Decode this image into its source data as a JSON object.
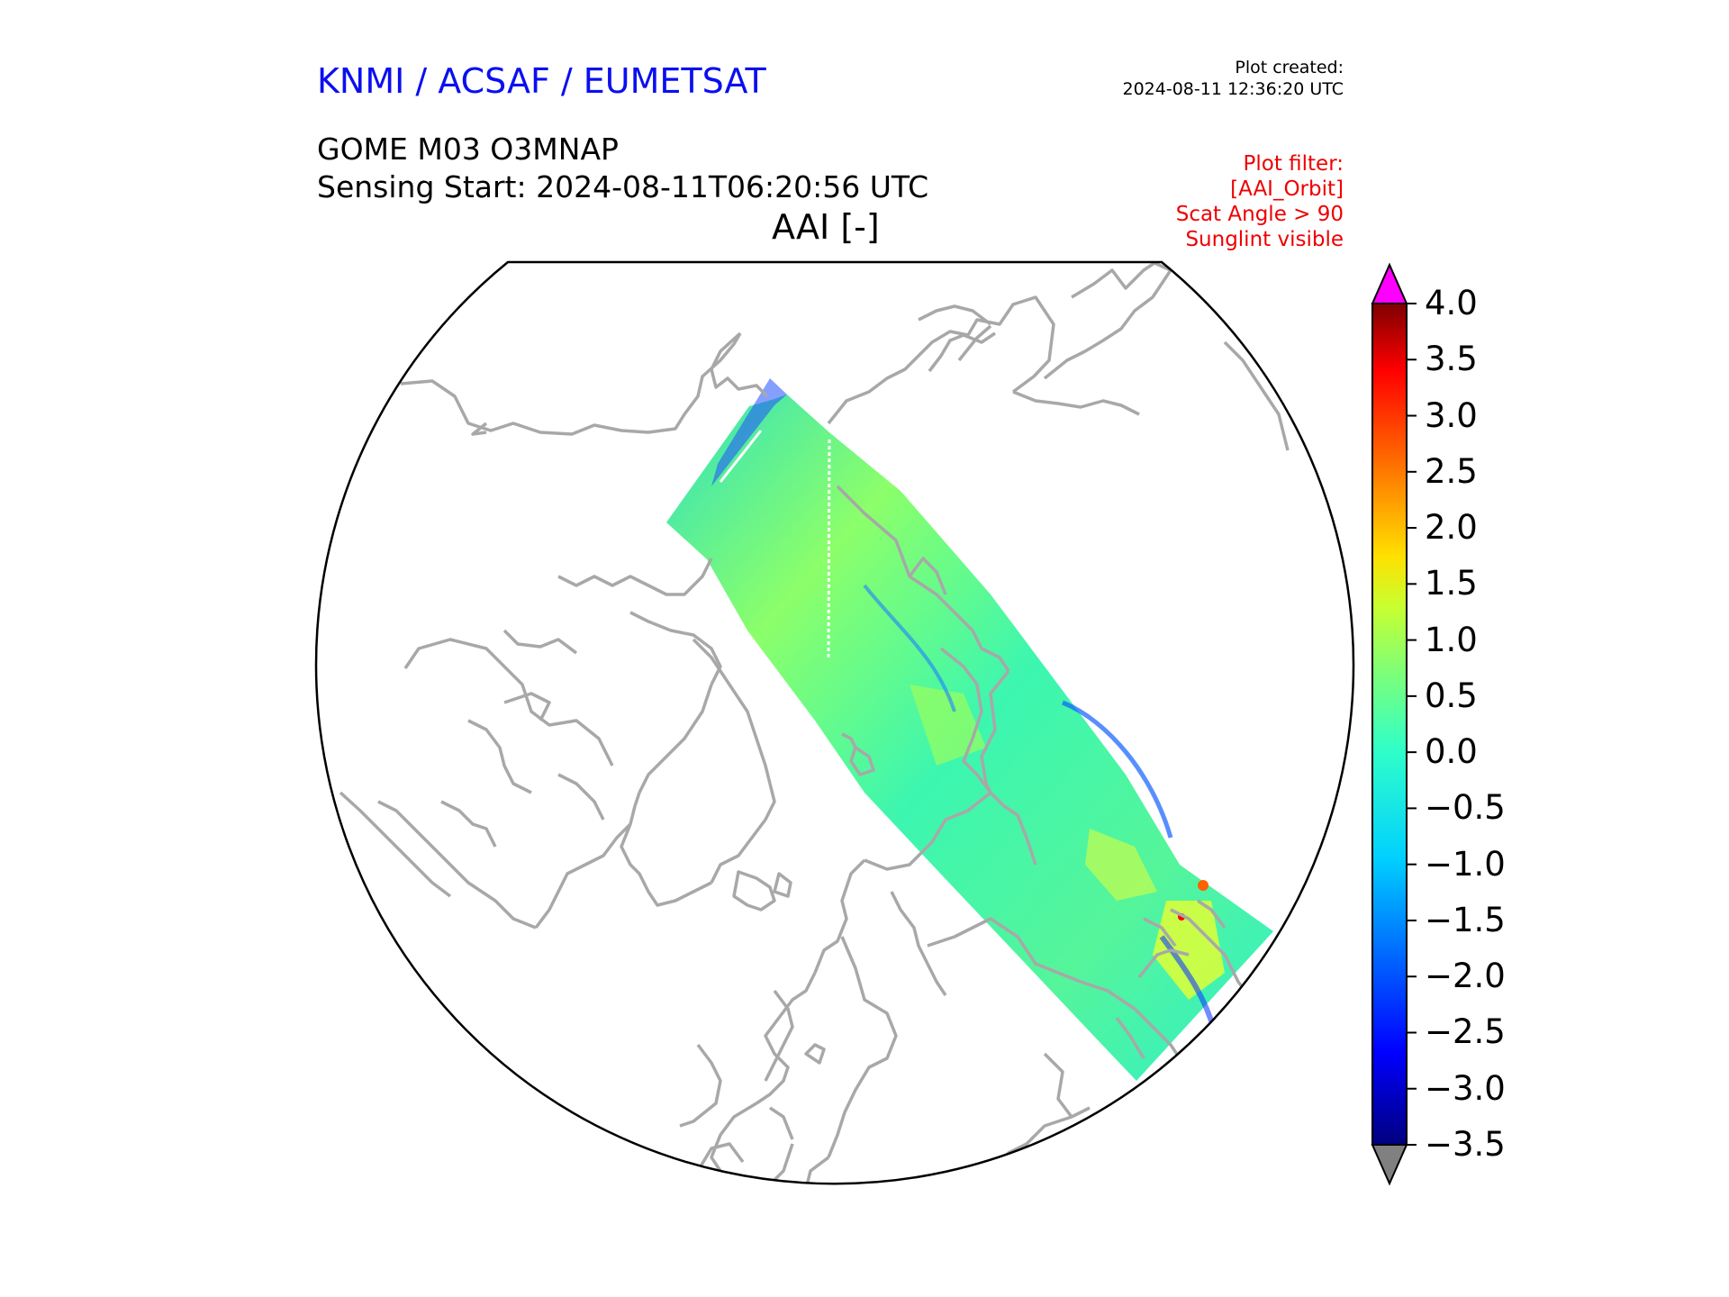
{
  "header": {
    "brand": "KNMI / ACSAF / EUMETSAT",
    "plot_created_label": "Plot created:",
    "plot_created_value": "2024-08-11 12:36:20 UTC",
    "product": "GOME M03 O3MNAP",
    "sensing_start": "Sensing Start: 2024-08-11T06:20:56 UTC",
    "variable_title": "AAI [-]"
  },
  "plot_filter": {
    "lines": [
      "Plot filter:",
      "[AAI_Orbit]",
      "Scat Angle > 90",
      "Sunglint visible"
    ]
  },
  "colorbar": {
    "min": -3.5,
    "max": 4.0,
    "ticks": [
      "4.0",
      "3.5",
      "3.0",
      "2.5",
      "2.0",
      "1.5",
      "1.0",
      "0.5",
      "0.0",
      "−0.5",
      "−1.0",
      "−1.5",
      "−2.0",
      "−2.5",
      "−3.0",
      "−3.5"
    ],
    "over_color": "#ff00ff",
    "under_color": "#808080",
    "colormap": "jet"
  },
  "map": {
    "projection": "north-polar stereographic",
    "coastline_color": "#a8a8a8",
    "boundary_color": "#000000",
    "swath_colors": [
      "#3df5a0",
      "#7cff7a",
      "#26ffd0",
      "#b6ff4a",
      "#1e90ff"
    ]
  }
}
